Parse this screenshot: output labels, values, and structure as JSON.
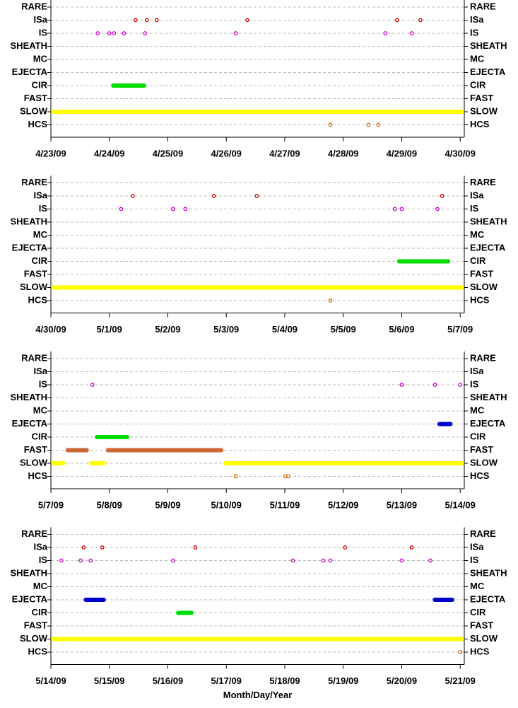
{
  "chart_data": [
    {
      "type": "scatter",
      "categories": [
        "RARE",
        "ISa",
        "IS",
        "SHEATH",
        "MC",
        "EJECTA",
        "CIR",
        "FAST",
        "SLOW",
        "HCS"
      ],
      "xlim": [
        0,
        7.07
      ],
      "xticks": [
        {
          "value": 0,
          "label": "4/23/09"
        },
        {
          "value": 1,
          "label": "4/24/09"
        },
        {
          "value": 2,
          "label": "4/25/09"
        },
        {
          "value": 3,
          "label": "4/26/09"
        },
        {
          "value": 4,
          "label": "4/27/09"
        },
        {
          "value": 5,
          "label": "4/28/09"
        },
        {
          "value": 6,
          "label": "4/29/09"
        },
        {
          "value": 7,
          "label": "4/30/09"
        }
      ],
      "series": [
        {
          "color": "#cc0000",
          "x": [
            1.45,
            1.64,
            1.81,
            3.36,
            5.92,
            6.32
          ],
          "values": [
            "ISa",
            "ISa",
            "ISa",
            "ISa",
            "ISa",
            "ISa"
          ]
        },
        {
          "color": "#cc00cc",
          "x": [
            0.8,
            1.0,
            1.08,
            1.25,
            1.61,
            3.16,
            5.72,
            6.17
          ],
          "values": [
            "IS",
            "IS",
            "IS",
            "IS",
            "IS",
            "IS",
            "IS",
            "IS"
          ]
        },
        {
          "color": "#cc6600",
          "x": [
            4.78,
            5.43,
            5.6
          ],
          "values": [
            "HCS",
            "HCS",
            "HCS"
          ]
        }
      ],
      "runs": [
        {
          "color": "#00dd00",
          "value": "CIR",
          "x": [
            1.03,
            1.63
          ]
        },
        {
          "color": "#ffff00",
          "value": "SLOW",
          "x": [
            0,
            7.07
          ]
        }
      ]
    },
    {
      "type": "scatter",
      "categories": [
        "RARE",
        "ISa",
        "IS",
        "SHEATH",
        "MC",
        "EJECTA",
        "CIR",
        "FAST",
        "SLOW",
        "HCS"
      ],
      "xlim": [
        0,
        7.07
      ],
      "xticks": [
        {
          "value": 0,
          "label": "4/30/09"
        },
        {
          "value": 1,
          "label": "5/1/09"
        },
        {
          "value": 2,
          "label": "5/2/09"
        },
        {
          "value": 3,
          "label": "5/3/09"
        },
        {
          "value": 4,
          "label": "5/4/09"
        },
        {
          "value": 5,
          "label": "5/5/09"
        },
        {
          "value": 6,
          "label": "5/6/09"
        },
        {
          "value": 7,
          "label": "5/7/09"
        }
      ],
      "series": [
        {
          "color": "#cc0000",
          "x": [
            1.4,
            2.79,
            3.52,
            6.69
          ],
          "values": [
            "ISa",
            "ISa",
            "ISa",
            "ISa"
          ]
        },
        {
          "color": "#cc00cc",
          "x": [
            1.2,
            2.09,
            2.3,
            5.88,
            6.0,
            6.61
          ],
          "values": [
            "IS",
            "IS",
            "IS",
            "IS",
            "IS",
            "IS"
          ]
        },
        {
          "color": "#cc6600",
          "x": [
            4.78
          ],
          "values": [
            "HCS"
          ]
        }
      ],
      "runs": [
        {
          "color": "#00dd00",
          "value": "CIR",
          "x": [
            5.92,
            6.83
          ]
        },
        {
          "color": "#ffff00",
          "value": "SLOW",
          "x": [
            0,
            7.07
          ]
        }
      ]
    },
    {
      "type": "scatter",
      "categories": [
        "RARE",
        "ISa",
        "IS",
        "SHEATH",
        "MC",
        "EJECTA",
        "CIR",
        "FAST",
        "SLOW",
        "HCS"
      ],
      "xlim": [
        0,
        7.07
      ],
      "xticks": [
        {
          "value": 0,
          "label": "5/7/09"
        },
        {
          "value": 1,
          "label": "5/8/09"
        },
        {
          "value": 2,
          "label": "5/9/09"
        },
        {
          "value": 3,
          "label": "5/10/09"
        },
        {
          "value": 4,
          "label": "5/11/09"
        },
        {
          "value": 5,
          "label": "5/12/09"
        },
        {
          "value": 6,
          "label": "5/13/09"
        },
        {
          "value": 7,
          "label": "5/14/09"
        }
      ],
      "series": [
        {
          "color": "#cc00cc",
          "x": [
            0.71,
            6.0,
            6.57,
            7.0
          ],
          "values": [
            "IS",
            "IS",
            "IS",
            "IS"
          ]
        },
        {
          "color": "#cc6600",
          "x": [
            3.16,
            4.01,
            4.06
          ],
          "values": [
            "HCS",
            "HCS",
            "HCS"
          ]
        }
      ],
      "runs": [
        {
          "color": "#0000cc",
          "value": "EJECTA",
          "x": [
            6.61,
            6.87
          ]
        },
        {
          "color": "#00dd00",
          "value": "CIR",
          "x": [
            0.75,
            1.34
          ]
        },
        {
          "color": "#cc6633",
          "value": "FAST",
          "x": [
            0.25,
            0.65
          ]
        },
        {
          "color": "#cc6633",
          "value": "FAST",
          "x": [
            0.94,
            2.95
          ]
        },
        {
          "color": "#ffff00",
          "value": "SLOW",
          "x": [
            0,
            0.25
          ]
        },
        {
          "color": "#ffff00",
          "value": "SLOW",
          "x": [
            0.65,
            0.94
          ]
        },
        {
          "color": "#ffff00",
          "value": "SLOW",
          "x": [
            2.95,
            7.07
          ]
        }
      ]
    },
    {
      "type": "scatter",
      "categories": [
        "RARE",
        "ISa",
        "IS",
        "SHEATH",
        "MC",
        "EJECTA",
        "CIR",
        "FAST",
        "SLOW",
        "HCS"
      ],
      "xlabel": "Month/Day/Year",
      "xlim": [
        0,
        7.07
      ],
      "xticks": [
        {
          "value": 0,
          "label": "5/14/09"
        },
        {
          "value": 1,
          "label": "5/15/09"
        },
        {
          "value": 2,
          "label": "5/16/09"
        },
        {
          "value": 3,
          "label": "5/17/09"
        },
        {
          "value": 4,
          "label": "5/18/09"
        },
        {
          "value": 5,
          "label": "5/19/09"
        },
        {
          "value": 6,
          "label": "5/20/09"
        },
        {
          "value": 7,
          "label": "5/21/09"
        }
      ],
      "series": [
        {
          "color": "#cc0000",
          "x": [
            0.56,
            0.88,
            2.47,
            5.03,
            6.17
          ],
          "values": [
            "ISa",
            "ISa",
            "ISa",
            "ISa",
            "ISa"
          ]
        },
        {
          "color": "#cc00cc",
          "x": [
            0.18,
            0.51,
            0.68,
            2.09,
            4.14,
            4.66,
            4.78,
            6.0,
            6.49
          ],
          "values": [
            "IS",
            "IS",
            "IS",
            "IS",
            "IS",
            "IS",
            "IS",
            "IS",
            "IS"
          ]
        },
        {
          "color": "#cc6600",
          "x": [
            7.0
          ],
          "values": [
            "HCS"
          ]
        }
      ],
      "runs": [
        {
          "color": "#0000cc",
          "value": "EJECTA",
          "x": [
            0.56,
            0.94
          ]
        },
        {
          "color": "#0000cc",
          "value": "EJECTA",
          "x": [
            6.53,
            6.9
          ]
        },
        {
          "color": "#00dd00",
          "value": "CIR",
          "x": [
            2.14,
            2.44
          ]
        },
        {
          "color": "#ffff00",
          "value": "SLOW",
          "x": [
            0,
            7.07
          ]
        }
      ]
    }
  ]
}
